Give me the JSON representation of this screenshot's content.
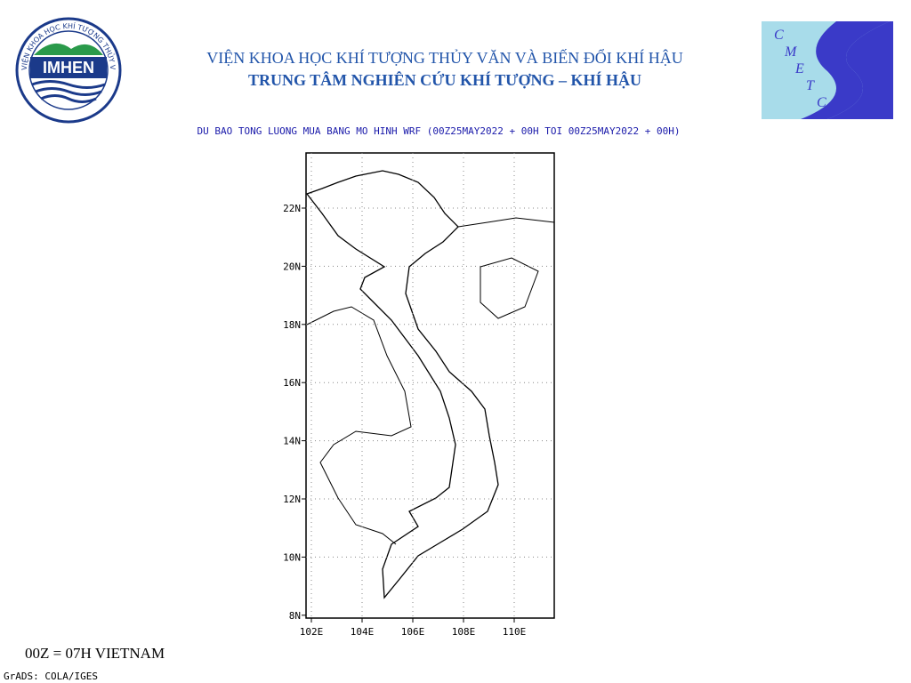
{
  "header": {
    "line1": "VIỆN KHOA HỌC KHÍ TƯỢNG THỦY VĂN VÀ BIẾN ĐỔI KHÍ HẬU",
    "line2": "TRUNG TÂM NGHIÊN CỨU KHÍ TƯỢNG – KHÍ HẬU"
  },
  "logos": {
    "left_ring": "VIỆN KHOA HỌC KHÍ TƯỢNG THỦY VĂN VÀ BIẾN ĐỔI KHÍ HẬU",
    "left_name": "IMHEN",
    "right_letters": [
      "C",
      "M",
      "E",
      "T",
      "C"
    ]
  },
  "map": {
    "title": "DU BAO TONG LUONG MUA BANG MO HINH WRF (00Z25MAY2022 + 00H TOI 00Z25MAY2022 + 00H)",
    "lat_labels": [
      "22N",
      "20N",
      "18N",
      "16N",
      "14N",
      "12N",
      "10N",
      "8N"
    ],
    "lon_labels": [
      "102E",
      "104E",
      "106E",
      "108E",
      "110E"
    ]
  },
  "footer": {
    "note": "00Z = 07H VIETNAM",
    "credit": "GrADS: COLA/IGES"
  }
}
